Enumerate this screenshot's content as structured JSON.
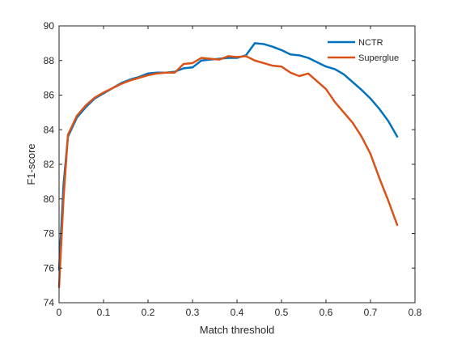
{
  "chart_data": {
    "type": "line",
    "xlabel": "Match threshold",
    "ylabel": "F1-score",
    "xlim": [
      0,
      0.8
    ],
    "ylim": [
      74,
      90
    ],
    "xticks": [
      0,
      0.1,
      0.2,
      0.3,
      0.4,
      0.5,
      0.6,
      0.7,
      0.8
    ],
    "xtick_labels": [
      "0",
      "0.1",
      "0.2",
      "0.3",
      "0.4",
      "0.5",
      "0.6",
      "0.7",
      "0.8"
    ],
    "yticks": [
      74,
      76,
      78,
      80,
      82,
      84,
      86,
      88,
      90
    ],
    "ytick_labels": [
      "74",
      "76",
      "78",
      "80",
      "82",
      "84",
      "86",
      "88",
      "90"
    ],
    "grid": false,
    "legend_position": "top-right",
    "series": [
      {
        "name": "NCTR",
        "color": "#0072BD",
        "x": [
          0.0,
          0.01,
          0.02,
          0.04,
          0.06,
          0.08,
          0.1,
          0.12,
          0.14,
          0.16,
          0.18,
          0.2,
          0.22,
          0.24,
          0.26,
          0.28,
          0.3,
          0.32,
          0.34,
          0.36,
          0.38,
          0.4,
          0.42,
          0.44,
          0.46,
          0.48,
          0.5,
          0.52,
          0.54,
          0.56,
          0.58,
          0.6,
          0.62,
          0.64,
          0.66,
          0.68,
          0.7,
          0.72,
          0.74,
          0.76
        ],
        "y": [
          75.9,
          80.8,
          83.6,
          84.7,
          85.3,
          85.8,
          86.1,
          86.4,
          86.7,
          86.9,
          87.05,
          87.25,
          87.3,
          87.3,
          87.35,
          87.55,
          87.6,
          88.0,
          88.05,
          88.1,
          88.15,
          88.15,
          88.3,
          89.0,
          88.95,
          88.8,
          88.6,
          88.35,
          88.3,
          88.15,
          87.9,
          87.65,
          87.5,
          87.2,
          86.75,
          86.3,
          85.8,
          85.2,
          84.5,
          83.6
        ]
      },
      {
        "name": "Superglue",
        "color": "#D95319",
        "x": [
          0.0,
          0.01,
          0.02,
          0.04,
          0.06,
          0.08,
          0.1,
          0.12,
          0.14,
          0.16,
          0.18,
          0.2,
          0.22,
          0.24,
          0.26,
          0.28,
          0.3,
          0.32,
          0.34,
          0.36,
          0.38,
          0.4,
          0.42,
          0.44,
          0.46,
          0.48,
          0.5,
          0.52,
          0.54,
          0.56,
          0.58,
          0.6,
          0.62,
          0.64,
          0.66,
          0.68,
          0.7,
          0.72,
          0.74,
          0.76
        ],
        "y": [
          74.9,
          80.0,
          83.7,
          84.8,
          85.4,
          85.85,
          86.15,
          86.4,
          86.65,
          86.85,
          87.0,
          87.15,
          87.25,
          87.3,
          87.3,
          87.8,
          87.85,
          88.15,
          88.1,
          88.05,
          88.25,
          88.2,
          88.25,
          88.0,
          87.85,
          87.7,
          87.65,
          87.3,
          87.1,
          87.25,
          86.8,
          86.35,
          85.6,
          85.0,
          84.4,
          83.6,
          82.6,
          81.2,
          79.9,
          78.5
        ]
      }
    ]
  }
}
